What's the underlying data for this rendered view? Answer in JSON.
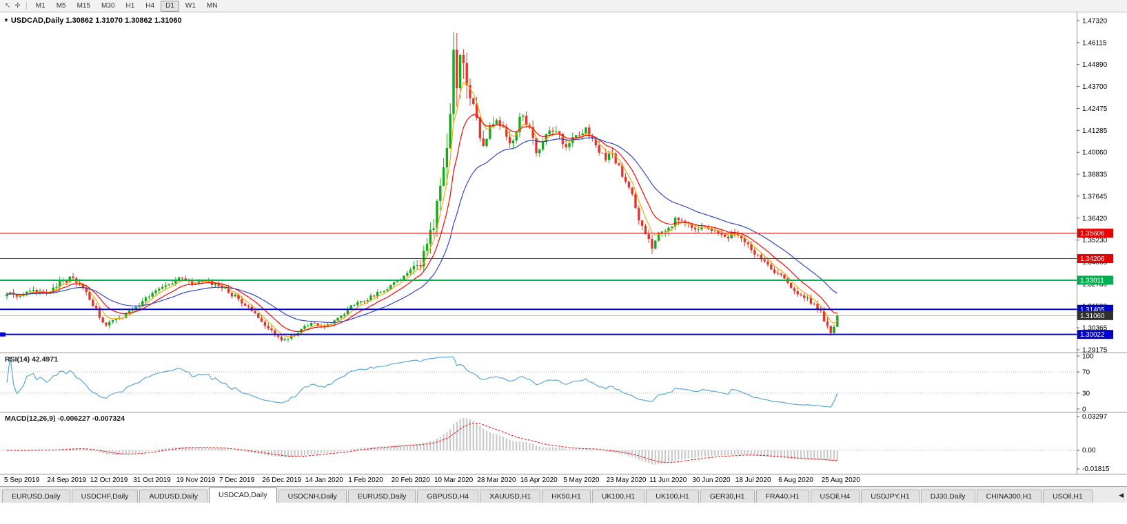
{
  "toolbar": {
    "icons": [
      {
        "name": "cursor-icon",
        "glyph": "↖"
      },
      {
        "name": "crosshair-icon",
        "glyph": "✛"
      }
    ],
    "periods": [
      {
        "label": "M1",
        "active": false
      },
      {
        "label": "M5",
        "active": false
      },
      {
        "label": "M15",
        "active": false
      },
      {
        "label": "M30",
        "active": false
      },
      {
        "label": "H1",
        "active": false
      },
      {
        "label": "H4",
        "active": false
      },
      {
        "label": "D1",
        "active": true
      },
      {
        "label": "W1",
        "active": false
      },
      {
        "label": "MN",
        "active": false
      }
    ]
  },
  "chart_data": {
    "type": "candlestick",
    "symbol": "USDCAD",
    "period": "Daily",
    "dropdown_glyph": "▼",
    "title": "USDCAD,Daily 1.30862 1.31070 1.30862 1.31060",
    "ohlc": {
      "open": "1.30862",
      "high": "1.31070",
      "low": "1.30862",
      "close": "1.31060"
    },
    "price_axis": {
      "max": 1.4732,
      "min": 1.29175,
      "labels": [
        "1.47320",
        "1.46115",
        "1.44890",
        "1.43700",
        "1.42475",
        "1.41285",
        "1.40060",
        "1.38835",
        "1.37645",
        "1.36420",
        "1.35230",
        "1.34005",
        "1.32780",
        "1.31590",
        "1.30365",
        "1.29175"
      ]
    },
    "x_labels": [
      {
        "t": 0,
        "label": "5 Sep 2019"
      },
      {
        "t": 13,
        "label": "24 Sep 2019"
      },
      {
        "t": 26,
        "label": "12 Oct 2019"
      },
      {
        "t": 39,
        "label": "31 Oct 2019"
      },
      {
        "t": 52,
        "label": "19 Nov 2019"
      },
      {
        "t": 65,
        "label": "7 Dec 2019"
      },
      {
        "t": 78,
        "label": "26 Dec 2019"
      },
      {
        "t": 91,
        "label": "14 Jan 2020"
      },
      {
        "t": 104,
        "label": "1 Feb 2020"
      },
      {
        "t": 117,
        "label": "20 Feb 2020"
      },
      {
        "t": 130,
        "label": "10 Mar 2020"
      },
      {
        "t": 143,
        "label": "28 Mar 2020"
      },
      {
        "t": 156,
        "label": "16 Apr 2020"
      },
      {
        "t": 169,
        "label": "5 May 2020"
      },
      {
        "t": 182,
        "label": "23 May 2020"
      },
      {
        "t": 195,
        "label": "11 Jun 2020"
      },
      {
        "t": 208,
        "label": "30 Jun 2020"
      },
      {
        "t": 221,
        "label": "18 Jul 2020"
      },
      {
        "t": 234,
        "label": "6 Aug 2020"
      },
      {
        "t": 247,
        "label": "25 Aug 2020"
      }
    ],
    "num_candles": 252,
    "seed": 73,
    "final_close": 1.3106,
    "spike": {
      "t": 135,
      "high": 1.4668
    },
    "end_dip": {
      "t": 249,
      "low": 1.2995
    },
    "price_anchors": [
      [
        0,
        1.3235,
        0.0035
      ],
      [
        4,
        1.3205,
        0.003
      ],
      [
        8,
        1.3245,
        0.0035
      ],
      [
        12,
        1.3225,
        0.003
      ],
      [
        16,
        1.3285,
        0.004
      ],
      [
        20,
        1.332,
        0.0035
      ],
      [
        23,
        1.3255,
        0.004
      ],
      [
        26,
        1.316,
        0.0045
      ],
      [
        30,
        1.3055,
        0.004
      ],
      [
        34,
        1.3085,
        0.003
      ],
      [
        39,
        1.315,
        0.003
      ],
      [
        44,
        1.3235,
        0.003
      ],
      [
        48,
        1.328,
        0.003
      ],
      [
        52,
        1.331,
        0.003
      ],
      [
        56,
        1.3285,
        0.0028
      ],
      [
        60,
        1.33,
        0.0028
      ],
      [
        64,
        1.327,
        0.003
      ],
      [
        68,
        1.3225,
        0.0035
      ],
      [
        72,
        1.3165,
        0.0035
      ],
      [
        76,
        1.31,
        0.003
      ],
      [
        80,
        1.302,
        0.0035
      ],
      [
        83,
        1.297,
        0.0035
      ],
      [
        86,
        1.2985,
        0.003
      ],
      [
        89,
        1.303,
        0.0028
      ],
      [
        92,
        1.306,
        0.0028
      ],
      [
        96,
        1.304,
        0.0025
      ],
      [
        100,
        1.309,
        0.0028
      ],
      [
        104,
        1.3155,
        0.0028
      ],
      [
        108,
        1.3185,
        0.0028
      ],
      [
        112,
        1.323,
        0.0028
      ],
      [
        116,
        1.327,
        0.003
      ],
      [
        119,
        1.331,
        0.0035
      ],
      [
        122,
        1.3355,
        0.0045
      ],
      [
        125,
        1.34,
        0.006
      ],
      [
        127,
        1.348,
        0.0085
      ],
      [
        129,
        1.36,
        0.011
      ],
      [
        131,
        1.378,
        0.014
      ],
      [
        133,
        1.405,
        0.017
      ],
      [
        135,
        1.45,
        0.02
      ],
      [
        136,
        1.438,
        0.018
      ],
      [
        137,
        1.459,
        0.016
      ],
      [
        138,
        1.445,
        0.015
      ],
      [
        140,
        1.432,
        0.012
      ],
      [
        142,
        1.416,
        0.01
      ],
      [
        144,
        1.406,
        0.009
      ],
      [
        146,
        1.412,
        0.0085
      ],
      [
        148,
        1.421,
        0.008
      ],
      [
        150,
        1.412,
        0.0078
      ],
      [
        152,
        1.406,
        0.0075
      ],
      [
        154,
        1.414,
        0.0072
      ],
      [
        156,
        1.4225,
        0.007
      ],
      [
        158,
        1.412,
        0.007
      ],
      [
        160,
        1.401,
        0.006
      ],
      [
        163,
        1.409,
        0.006
      ],
      [
        166,
        1.414,
        0.0055
      ],
      [
        169,
        1.403,
        0.005
      ],
      [
        172,
        1.409,
        0.005
      ],
      [
        175,
        1.4125,
        0.0048
      ],
      [
        178,
        1.404,
        0.0045
      ],
      [
        181,
        1.3975,
        0.0045
      ],
      [
        183,
        1.4005,
        0.005
      ],
      [
        185,
        1.392,
        0.005
      ],
      [
        187,
        1.384,
        0.005
      ],
      [
        189,
        1.376,
        0.005
      ],
      [
        191,
        1.365,
        0.005
      ],
      [
        193,
        1.355,
        0.0055
      ],
      [
        195,
        1.3465,
        0.0065
      ],
      [
        197,
        1.354,
        0.0055
      ],
      [
        200,
        1.359,
        0.005
      ],
      [
        203,
        1.365,
        0.0045
      ],
      [
        206,
        1.36,
        0.004
      ],
      [
        208,
        1.357,
        0.004
      ],
      [
        211,
        1.3605,
        0.0038
      ],
      [
        214,
        1.356,
        0.0038
      ],
      [
        217,
        1.3535,
        0.0038
      ],
      [
        221,
        1.356,
        0.0038
      ],
      [
        224,
        1.349,
        0.0038
      ],
      [
        227,
        1.343,
        0.0038
      ],
      [
        230,
        1.3385,
        0.0036
      ],
      [
        234,
        1.3325,
        0.0036
      ],
      [
        237,
        1.3255,
        0.0036
      ],
      [
        240,
        1.3225,
        0.0034
      ],
      [
        243,
        1.3185,
        0.0034
      ],
      [
        246,
        1.3135,
        0.0036
      ],
      [
        248,
        1.304,
        0.004
      ],
      [
        249,
        1.3,
        0.0042
      ],
      [
        250,
        1.306,
        0.004
      ],
      [
        251,
        1.3106,
        0.0038
      ]
    ],
    "candles": {
      "up": "#17a81c",
      "down": "#e3352c"
    },
    "moving_averages": [
      {
        "name": "ma-fast-orange",
        "period": 5,
        "color": "#ffa800"
      },
      {
        "name": "ma-mid-red",
        "period": 11,
        "color": "#ff0000"
      },
      {
        "name": "ma-slow-blue",
        "period": 26,
        "color": "#3146c8"
      }
    ],
    "h_lines": [
      {
        "price": 1.35606,
        "label": "1.35606",
        "color": "#e60000",
        "width": 1,
        "badge": "#e60000"
      },
      {
        "price": 1.34206,
        "label": "1.34206",
        "color": "#e60000",
        "width": 1,
        "badge": "#e60000"
      },
      {
        "price": 1.33011,
        "label": "1.33011",
        "color": "#00b050",
        "width": 2,
        "badge": "#00b050"
      },
      {
        "price": 1.31405,
        "label": "1.31405",
        "color": "#0000e0",
        "width": 2,
        "badge": "#0000cc"
      },
      {
        "price": 1.30022,
        "label": "1.30022",
        "color": "#0000e0",
        "width": 2,
        "badge": "#0000cc",
        "left_marker": true
      }
    ],
    "current_price": {
      "value": 1.3106,
      "label": "1.31060",
      "line_color": "#b4b4b4",
      "badge_color": "#303030"
    },
    "rsi": {
      "label": "RSI(14) 42.4971",
      "period": 14,
      "color": "#58a6d8",
      "levels": [
        {
          "label": "100",
          "value": 100,
          "grid": false
        },
        {
          "label": "70",
          "value": 70,
          "grid": true
        },
        {
          "label": "30",
          "value": 30,
          "grid": true
        },
        {
          "label": "0",
          "value": 0,
          "grid": false
        }
      ]
    },
    "macd": {
      "label": "MACD(12,26,9) -0.006227 -0.007324",
      "fast": 12,
      "slow": 26,
      "signal": 9,
      "histogram_color": "#c9c9c9",
      "signal_color": "#ff0000",
      "axis": [
        {
          "label": "0.03297",
          "value": 0.03297,
          "grid": false
        },
        {
          "label": "0.00",
          "value": 0,
          "grid": true
        },
        {
          "label": "-0.01815",
          "value": -0.01815,
          "grid": false
        }
      ]
    }
  },
  "tab_bar": {
    "scroll_left_glyph": "◀",
    "tabs": [
      {
        "label": "EURUSD,Daily",
        "active": false
      },
      {
        "label": "USDCHF,Daily",
        "active": false
      },
      {
        "label": "AUDUSD,Daily",
        "active": false
      },
      {
        "label": "USDCAD,Daily",
        "active": true
      },
      {
        "label": "USDCNH,Daily",
        "active": false
      },
      {
        "label": "EURUSD,Daily",
        "active": false
      },
      {
        "label": "GBPUSD,H4",
        "active": false
      },
      {
        "label": "XAUUSD,H1",
        "active": false
      },
      {
        "label": "HK50,H1",
        "active": false
      },
      {
        "label": "UK100,H1",
        "active": false
      },
      {
        "label": "UK100,H1",
        "active": false
      },
      {
        "label": "GER30,H1",
        "active": false
      },
      {
        "label": "FRA40,H1",
        "active": false
      },
      {
        "label": "USOil,H4",
        "active": false
      },
      {
        "label": "USDJPY,H1",
        "active": false
      },
      {
        "label": "DJ30,Daily",
        "active": false
      },
      {
        "label": "CHINA300,H1",
        "active": false
      },
      {
        "label": "USOil,H1",
        "active": false
      }
    ]
  }
}
